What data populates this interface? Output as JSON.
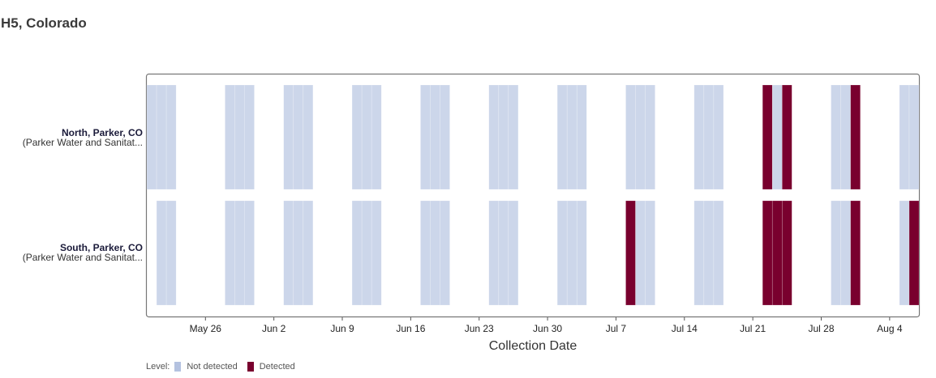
{
  "page_title": "H5, Colorado",
  "colors": {
    "not_detected": "#ccd6ea",
    "detected": "#79002e",
    "frame": "#777777"
  },
  "legend": {
    "title": "Level:",
    "items": [
      {
        "label": "Not detected",
        "color": "#ccd6ea"
      },
      {
        "label": "Detected",
        "color": "#79002e"
      }
    ]
  },
  "chart_data": {
    "type": "heatmap",
    "xlabel": "Collection Date",
    "x_ticks": [
      "May 26",
      "Jun 2",
      "Jun 9",
      "Jun 16",
      "Jun 23",
      "Jun 30",
      "Jul 7",
      "Jul 14",
      "Jul 21",
      "Jul 28",
      "Aug 4"
    ],
    "xlim": [
      "2024-05-20",
      "2024-08-07"
    ],
    "rows": [
      {
        "name": "North, Parker, CO",
        "subtitle": "(Parker Water and Sanitat...",
        "samples": [
          {
            "date": "2024-05-20",
            "level": "Not detected"
          },
          {
            "date": "2024-05-21",
            "level": "Not detected"
          },
          {
            "date": "2024-05-22",
            "level": "Not detected"
          },
          {
            "date": "2024-05-28",
            "level": "Not detected"
          },
          {
            "date": "2024-05-29",
            "level": "Not detected"
          },
          {
            "date": "2024-05-30",
            "level": "Not detected"
          },
          {
            "date": "2024-06-03",
            "level": "Not detected"
          },
          {
            "date": "2024-06-04",
            "level": "Not detected"
          },
          {
            "date": "2024-06-05",
            "level": "Not detected"
          },
          {
            "date": "2024-06-10",
            "level": "Not detected"
          },
          {
            "date": "2024-06-11",
            "level": "Not detected"
          },
          {
            "date": "2024-06-12",
            "level": "Not detected"
          },
          {
            "date": "2024-06-17",
            "level": "Not detected"
          },
          {
            "date": "2024-06-18",
            "level": "Not detected"
          },
          {
            "date": "2024-06-19",
            "level": "Not detected"
          },
          {
            "date": "2024-06-24",
            "level": "Not detected"
          },
          {
            "date": "2024-06-25",
            "level": "Not detected"
          },
          {
            "date": "2024-06-26",
            "level": "Not detected"
          },
          {
            "date": "2024-07-01",
            "level": "Not detected"
          },
          {
            "date": "2024-07-02",
            "level": "Not detected"
          },
          {
            "date": "2024-07-03",
            "level": "Not detected"
          },
          {
            "date": "2024-07-08",
            "level": "Not detected"
          },
          {
            "date": "2024-07-09",
            "level": "Not detected"
          },
          {
            "date": "2024-07-10",
            "level": "Not detected"
          },
          {
            "date": "2024-07-15",
            "level": "Not detected"
          },
          {
            "date": "2024-07-16",
            "level": "Not detected"
          },
          {
            "date": "2024-07-17",
            "level": "Not detected"
          },
          {
            "date": "2024-07-22",
            "level": "Detected"
          },
          {
            "date": "2024-07-23",
            "level": "Not detected"
          },
          {
            "date": "2024-07-24",
            "level": "Detected"
          },
          {
            "date": "2024-07-29",
            "level": "Not detected"
          },
          {
            "date": "2024-07-30",
            "level": "Not detected"
          },
          {
            "date": "2024-07-31",
            "level": "Detected"
          },
          {
            "date": "2024-08-05",
            "level": "Not detected"
          },
          {
            "date": "2024-08-06",
            "level": "Not detected"
          }
        ]
      },
      {
        "name": "South, Parker, CO",
        "subtitle": "(Parker Water and Sanitat...",
        "samples": [
          {
            "date": "2024-05-21",
            "level": "Not detected"
          },
          {
            "date": "2024-05-22",
            "level": "Not detected"
          },
          {
            "date": "2024-05-28",
            "level": "Not detected"
          },
          {
            "date": "2024-05-29",
            "level": "Not detected"
          },
          {
            "date": "2024-05-30",
            "level": "Not detected"
          },
          {
            "date": "2024-06-03",
            "level": "Not detected"
          },
          {
            "date": "2024-06-04",
            "level": "Not detected"
          },
          {
            "date": "2024-06-05",
            "level": "Not detected"
          },
          {
            "date": "2024-06-10",
            "level": "Not detected"
          },
          {
            "date": "2024-06-11",
            "level": "Not detected"
          },
          {
            "date": "2024-06-12",
            "level": "Not detected"
          },
          {
            "date": "2024-06-17",
            "level": "Not detected"
          },
          {
            "date": "2024-06-18",
            "level": "Not detected"
          },
          {
            "date": "2024-06-19",
            "level": "Not detected"
          },
          {
            "date": "2024-06-24",
            "level": "Not detected"
          },
          {
            "date": "2024-06-25",
            "level": "Not detected"
          },
          {
            "date": "2024-06-26",
            "level": "Not detected"
          },
          {
            "date": "2024-07-01",
            "level": "Not detected"
          },
          {
            "date": "2024-07-02",
            "level": "Not detected"
          },
          {
            "date": "2024-07-03",
            "level": "Not detected"
          },
          {
            "date": "2024-07-08",
            "level": "Detected"
          },
          {
            "date": "2024-07-09",
            "level": "Not detected"
          },
          {
            "date": "2024-07-10",
            "level": "Not detected"
          },
          {
            "date": "2024-07-15",
            "level": "Not detected"
          },
          {
            "date": "2024-07-16",
            "level": "Not detected"
          },
          {
            "date": "2024-07-17",
            "level": "Not detected"
          },
          {
            "date": "2024-07-22",
            "level": "Detected"
          },
          {
            "date": "2024-07-23",
            "level": "Detected"
          },
          {
            "date": "2024-07-24",
            "level": "Detected"
          },
          {
            "date": "2024-07-29",
            "level": "Not detected"
          },
          {
            "date": "2024-07-30",
            "level": "Not detected"
          },
          {
            "date": "2024-07-31",
            "level": "Detected"
          },
          {
            "date": "2024-08-05",
            "level": "Not detected"
          },
          {
            "date": "2024-08-06",
            "level": "Detected"
          }
        ]
      }
    ]
  }
}
